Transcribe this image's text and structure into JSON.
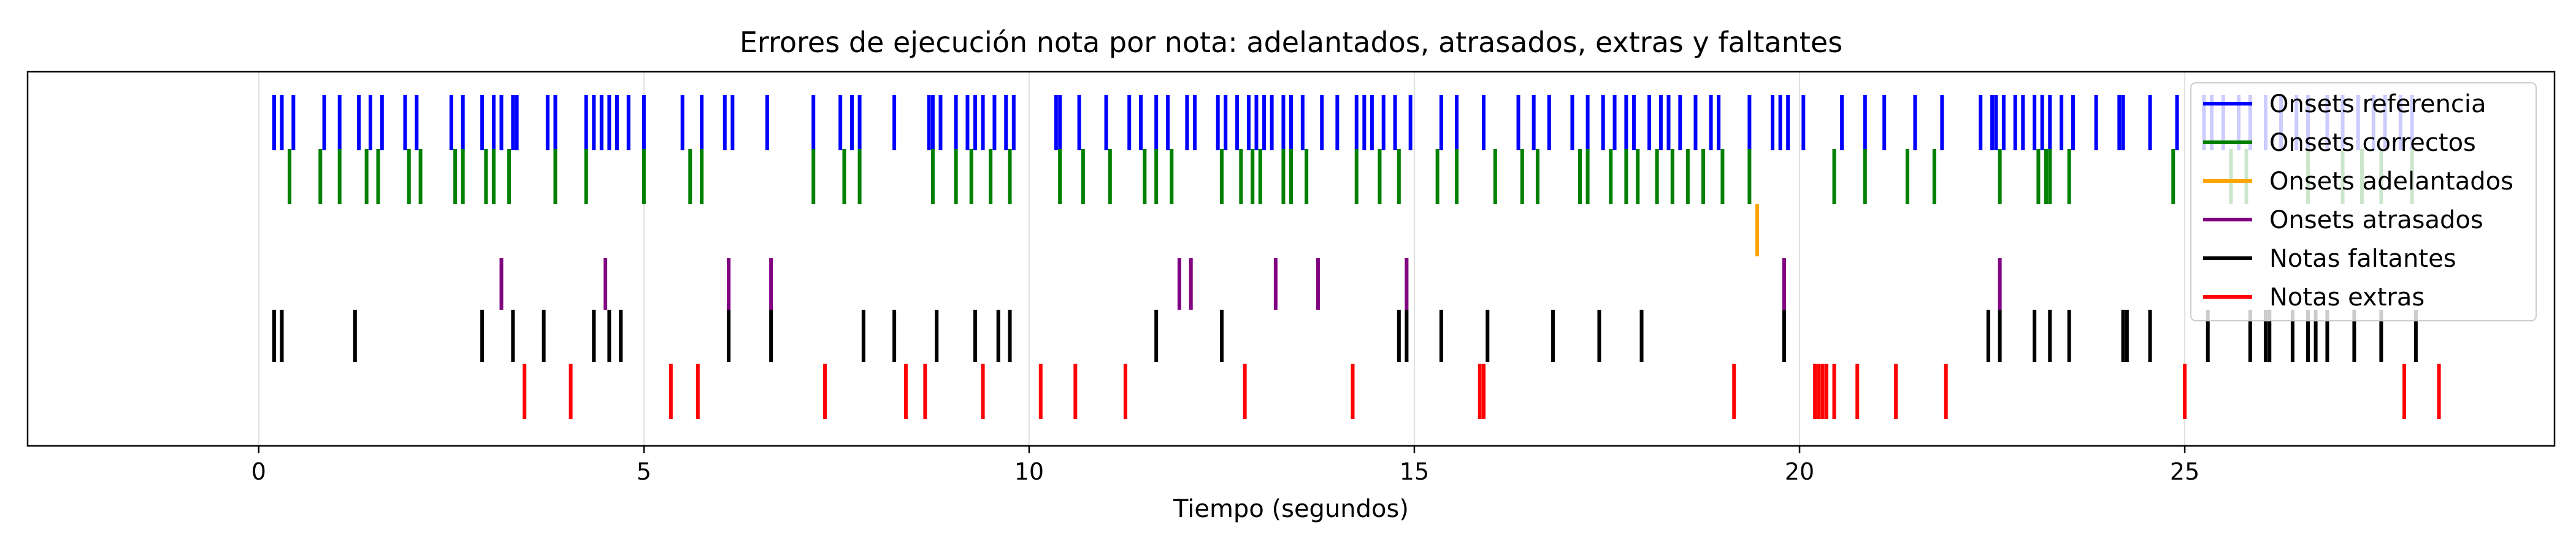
{
  "chart_data": {
    "type": "event_raster",
    "title": "Errores de ejecución nota por nota: adelantados, atrasados, extras y faltantes",
    "xlabel": "Tiempo (segundos)",
    "ylabel": "",
    "xlim": [
      -3.0,
      29.8
    ],
    "xticks": [
      0,
      5,
      10,
      15,
      20,
      25
    ],
    "grid": "vertical",
    "legend_position": "top-right",
    "series": [
      {
        "name": "Onsets referencia",
        "color": "#0000ff",
        "values": [
          0.2,
          0.3,
          0.45,
          0.85,
          1.05,
          1.3,
          1.45,
          1.6,
          1.9,
          2.05,
          2.5,
          2.65,
          2.9,
          3.05,
          3.15,
          3.3,
          3.35,
          3.75,
          3.85,
          4.25,
          4.35,
          4.45,
          4.55,
          4.65,
          4.8,
          5.0,
          5.5,
          5.75,
          6.05,
          6.15,
          6.6,
          7.2,
          7.55,
          7.7,
          7.8,
          8.25,
          8.7,
          8.75,
          8.85,
          9.05,
          9.2,
          9.3,
          9.4,
          9.55,
          9.7,
          9.8,
          10.35,
          10.4,
          10.65,
          11.0,
          11.3,
          11.45,
          11.65,
          11.8,
          12.05,
          12.15,
          12.45,
          12.55,
          12.7,
          12.85,
          12.95,
          13.05,
          13.15,
          13.3,
          13.4,
          13.55,
          13.8,
          14.0,
          14.25,
          14.35,
          14.45,
          14.6,
          14.75,
          14.95,
          15.35,
          15.55,
          15.9,
          16.35,
          16.55,
          16.75,
          17.05,
          17.25,
          17.45,
          17.6,
          17.75,
          17.85,
          18.05,
          18.2,
          18.3,
          18.45,
          18.65,
          18.85,
          18.95,
          19.35,
          19.65,
          19.75,
          19.85,
          20.05,
          20.55,
          20.85,
          21.1,
          21.5,
          21.85,
          22.35,
          22.5,
          22.55,
          22.65,
          22.8,
          22.9,
          23.05,
          23.15,
          23.25,
          23.4,
          23.55,
          23.85,
          24.15,
          24.2,
          24.55,
          24.9,
          25.25,
          25.35,
          25.5,
          25.7,
          25.85,
          26.05,
          26.25,
          26.45,
          26.6,
          26.85,
          27.05,
          27.25,
          27.45,
          27.6,
          27.8,
          27.95
        ]
      },
      {
        "name": "Onsets correctos",
        "color": "#008000",
        "values": [
          0.4,
          0.8,
          1.05,
          1.4,
          1.55,
          1.95,
          2.1,
          2.55,
          2.65,
          2.95,
          3.05,
          3.25,
          3.85,
          4.25,
          5.0,
          5.6,
          5.75,
          7.2,
          7.6,
          7.8,
          8.75,
          9.05,
          9.25,
          9.5,
          9.75,
          10.4,
          10.7,
          11.05,
          11.5,
          11.65,
          11.85,
          12.5,
          12.75,
          12.9,
          13.0,
          13.3,
          13.4,
          13.6,
          14.25,
          14.55,
          14.8,
          15.3,
          15.55,
          16.05,
          16.4,
          16.6,
          17.15,
          17.25,
          17.55,
          17.75,
          17.9,
          18.15,
          18.35,
          18.55,
          18.75,
          19.0,
          19.35,
          20.45,
          20.85,
          21.4,
          21.75,
          22.6,
          23.1,
          23.2,
          23.25,
          23.5,
          24.85,
          25.6,
          25.8,
          26.6,
          27.05,
          27.3,
          27.55,
          27.95
        ]
      },
      {
        "name": "Onsets adelantados",
        "color": "#ffa500",
        "values": [
          19.45
        ]
      },
      {
        "name": "Onsets atrasados",
        "color": "#800080",
        "values": [
          3.15,
          4.5,
          6.1,
          6.65,
          11.95,
          12.1,
          13.2,
          13.75,
          14.9,
          19.8,
          22.6
        ]
      },
      {
        "name": "Notas faltantes",
        "color": "#000000",
        "values": [
          0.2,
          0.3,
          1.25,
          2.9,
          3.3,
          3.7,
          4.35,
          4.55,
          4.7,
          6.1,
          6.65,
          7.85,
          8.25,
          8.8,
          9.3,
          9.6,
          9.75,
          11.65,
          12.5,
          14.8,
          15.35,
          14.9,
          15.95,
          16.8,
          17.4,
          17.95,
          19.8,
          22.45,
          22.6,
          23.05,
          23.25,
          23.5,
          24.2,
          24.25,
          24.55,
          25.3,
          25.85,
          26.05,
          26.1,
          26.4,
          26.6,
          26.7,
          26.85,
          27.2,
          27.55,
          28.0
        ]
      },
      {
        "name": "Notas extras",
        "color": "#ff0000",
        "values": [
          3.45,
          4.05,
          5.35,
          5.7,
          7.35,
          8.4,
          8.65,
          9.4,
          10.15,
          10.6,
          11.25,
          12.8,
          14.2,
          15.85,
          15.9,
          19.15,
          20.2,
          20.25,
          20.3,
          20.35,
          20.45,
          20.75,
          21.25,
          21.9,
          25.0,
          27.85,
          28.3
        ]
      }
    ]
  }
}
